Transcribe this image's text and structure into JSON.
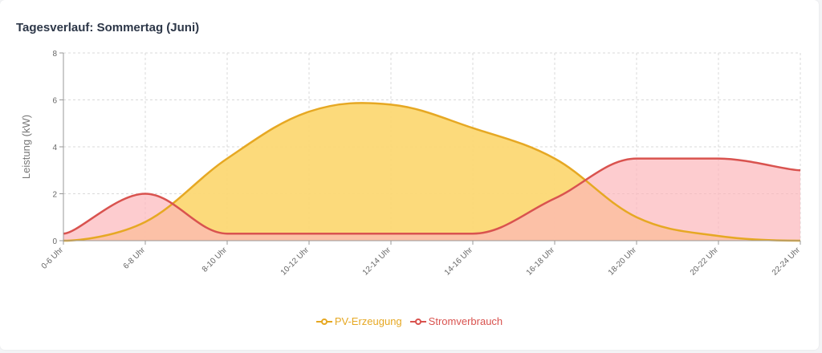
{
  "title": "Tagesverlauf: Sommertag (Juni)",
  "chart_data": {
    "type": "area",
    "title": "Tagesverlauf: Sommertag (Juni)",
    "xlabel": "",
    "ylabel": "Leistung (kW)",
    "ylim": [
      0,
      8
    ],
    "yticks": [
      0,
      2,
      4,
      6,
      8
    ],
    "grid": true,
    "legend": "bottom",
    "categories": [
      "0-6 Uhr",
      "6-8 Uhr",
      "8-10 Uhr",
      "10-12 Uhr",
      "12-14 Uhr",
      "14-16 Uhr",
      "16-18 Uhr",
      "18-20 Uhr",
      "20-22 Uhr",
      "22-24 Uhr"
    ],
    "series": [
      {
        "name": "PV-Erzeugung",
        "values": [
          0,
          0.8,
          3.5,
          5.5,
          5.8,
          4.8,
          3.5,
          1.0,
          0.2,
          0
        ],
        "color": "#e6a823",
        "fill": "#fcd874"
      },
      {
        "name": "Stromverbrauch",
        "values": [
          0.3,
          2.0,
          0.3,
          0.3,
          0.3,
          0.3,
          1.8,
          3.5,
          3.5,
          3.0
        ],
        "color": "#d9534f",
        "fill": "#fcb6ba"
      }
    ]
  }
}
